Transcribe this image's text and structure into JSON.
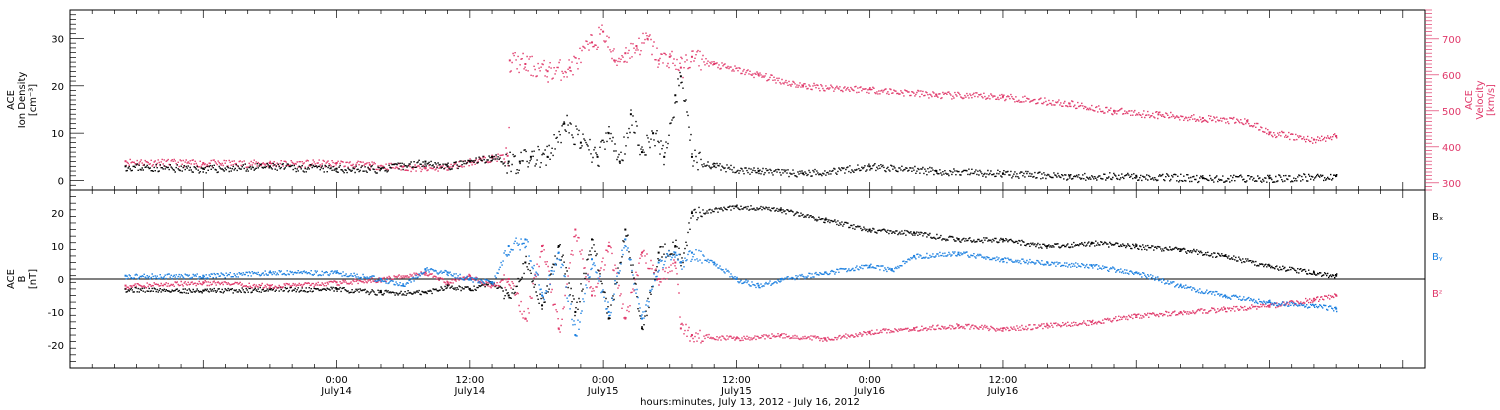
{
  "chart_data": [
    {
      "type": "scatter",
      "panel": "top",
      "ylabel_left": [
        "ACE",
        "Ion Density",
        "[cm⁻³]"
      ],
      "ylabel_right": [
        "ACE",
        "Velocity",
        "[km/s]"
      ],
      "ylim_left": [
        -2,
        36
      ],
      "ylim_right": [
        280,
        780
      ],
      "yticks_left": [
        0,
        10,
        20,
        30
      ],
      "yticks_right": [
        300,
        400,
        500,
        600,
        700
      ],
      "colors": {
        "density": "#000000",
        "velocity": "#e0386a"
      },
      "series": [
        {
          "axis": "left",
          "color": "#000000",
          "x": [
            -19,
            -12,
            -6,
            0,
            4,
            8,
            10,
            12,
            14,
            15.5,
            16.5,
            17.5,
            19,
            20.5,
            22,
            23.5,
            24.5,
            25.5,
            26.5,
            27.5,
            28.5,
            29.5,
            30.5,
            31,
            32,
            34,
            38,
            42,
            48,
            54,
            60,
            66,
            72,
            78,
            84,
            90
          ],
          "y": [
            3,
            2.5,
            3,
            2.5,
            2.5,
            4,
            3,
            4,
            5,
            4,
            4,
            5,
            5,
            12,
            8,
            5,
            10,
            4,
            14,
            6,
            10,
            5,
            18,
            22,
            5,
            3,
            2,
            1.5,
            3,
            2,
            1.5,
            1,
            1,
            0.5,
            0.5,
            1
          ]
        },
        {
          "axis": "right",
          "color": "#e0386a",
          "x": [
            -19,
            -12,
            -6,
            0,
            3,
            6,
            8,
            10,
            12,
            14,
            15.4,
            15.6,
            17,
            19,
            21,
            23,
            24,
            25,
            26,
            27,
            28,
            29,
            30,
            31,
            32,
            34,
            38,
            42,
            48,
            54,
            60,
            66,
            70,
            74,
            78,
            82,
            84,
            88,
            90
          ],
          "y": [
            360,
            355,
            355,
            355,
            350,
            345,
            340,
            345,
            360,
            370,
            375,
            640,
            630,
            610,
            620,
            690,
            720,
            640,
            660,
            680,
            700,
            640,
            650,
            620,
            650,
            630,
            600,
            570,
            560,
            545,
            540,
            520,
            500,
            490,
            480,
            470,
            440,
            420,
            430
          ]
        }
      ]
    },
    {
      "type": "scatter",
      "panel": "bottom",
      "ylabel_left": [
        "ACE",
        "B",
        "[nT]"
      ],
      "ylim": [
        -27,
        27
      ],
      "yticks": [
        -20,
        -10,
        0,
        10,
        20
      ],
      "zero_line": true,
      "legend_position": "right",
      "series": [
        {
          "name": "Bₓ",
          "color": "#000000",
          "x": [
            -19,
            -12,
            -6,
            0,
            4,
            8,
            10,
            12,
            14,
            15.5,
            17,
            18.5,
            20,
            21.5,
            23,
            24.5,
            26,
            27.5,
            29,
            30.5,
            31,
            32,
            36,
            40,
            44,
            48,
            52,
            56,
            60,
            64,
            68,
            72,
            76,
            80,
            84,
            88,
            90
          ],
          "y": [
            -3,
            -3.5,
            -3,
            -3,
            -4,
            -4,
            -2,
            -3,
            -1,
            -5,
            5,
            -8,
            10,
            -10,
            12,
            -12,
            15,
            -15,
            8,
            10,
            5,
            20,
            22,
            21,
            18,
            15,
            14,
            12,
            12,
            10,
            11,
            10,
            9,
            7,
            4,
            2,
            1
          ]
        },
        {
          "name": "Bᵧ",
          "color": "#1a7fe0",
          "x": [
            -19,
            -12,
            -6,
            0,
            4,
            6,
            8,
            10,
            12,
            14,
            15.5,
            17,
            18.5,
            20,
            21.5,
            23,
            24.5,
            26,
            27.5,
            29,
            30.5,
            31,
            32,
            34,
            36,
            38,
            40,
            44,
            48,
            50,
            52,
            56,
            60,
            64,
            68,
            72,
            76,
            80,
            84,
            88,
            90
          ],
          "y": [
            1,
            1,
            2,
            2,
            0,
            -2,
            3,
            2,
            0,
            -1,
            10,
            12,
            -5,
            8,
            -17,
            6,
            -10,
            12,
            -12,
            5,
            8,
            5,
            8,
            5,
            0,
            -2,
            0,
            2,
            4,
            3,
            7,
            8,
            6,
            5,
            4,
            2,
            -2,
            -5,
            -7,
            -8,
            -9
          ]
        },
        {
          "name": "Bᶻ",
          "color": "#e0386a",
          "x": [
            -19,
            -12,
            -6,
            0,
            4,
            8,
            10,
            12,
            14,
            15.5,
            17,
            18.5,
            20,
            21.5,
            23,
            24.5,
            26,
            27.5,
            29,
            30.5,
            31,
            32,
            36,
            40,
            44,
            48,
            52,
            56,
            60,
            64,
            68,
            72,
            76,
            80,
            84,
            88,
            90
          ],
          "y": [
            -2,
            -1,
            -2,
            -1,
            0,
            2,
            -1,
            1,
            -2,
            0,
            -12,
            10,
            -15,
            15,
            -5,
            10,
            -12,
            8,
            0,
            5,
            -15,
            -17,
            -18,
            -17,
            -18,
            -16,
            -15,
            -14,
            -15,
            -14,
            -13,
            -11,
            -10,
            -9,
            -8,
            -6,
            -5
          ]
        }
      ]
    },
    {
      "type": "axis",
      "xlabel": "hours:minutes, July 13, 2012 - July 16, 2012",
      "xlim": [
        -24,
        98
      ],
      "ticks": [
        {
          "x": 0,
          "time": "0:00",
          "day": "July14"
        },
        {
          "x": 12,
          "time": "12:00",
          "day": "July14"
        },
        {
          "x": 24,
          "time": "0:00",
          "day": "July15"
        },
        {
          "x": 36,
          "time": "12:00",
          "day": "July15"
        },
        {
          "x": 48,
          "time": "0:00",
          "day": "July16"
        },
        {
          "x": 60,
          "time": "12:00",
          "day": "July16"
        }
      ]
    }
  ]
}
